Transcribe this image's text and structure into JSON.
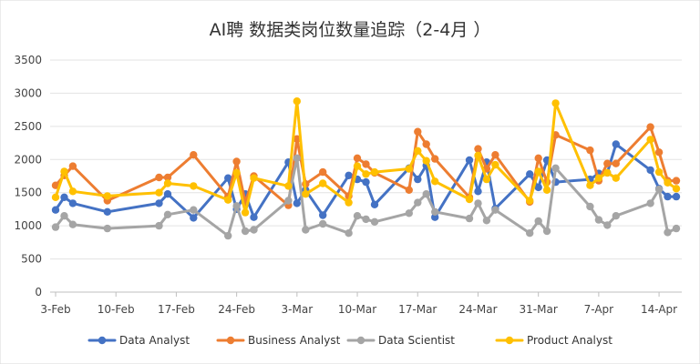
{
  "chart_data": {
    "type": "line",
    "title": "AI聘 数据类岗位数量追踪（2-4月 ）",
    "xlabel": "",
    "ylabel": "",
    "ylim": [
      0,
      3500
    ],
    "yticks": [
      0,
      500,
      1000,
      1500,
      2000,
      2500,
      3000,
      3500
    ],
    "xlim": [
      0,
      72
    ],
    "x_ticks": [
      {
        "label": "3-Feb",
        "x": 0
      },
      {
        "label": "10-Feb",
        "x": 7
      },
      {
        "label": "17-Feb",
        "x": 14
      },
      {
        "label": "24-Feb",
        "x": 21
      },
      {
        "label": "3-Mar",
        "x": 28
      },
      {
        "label": "10-Mar",
        "x": 35
      },
      {
        "label": "17-Mar",
        "x": 42
      },
      {
        "label": "24-Mar",
        "x": 49
      },
      {
        "label": "31-Mar",
        "x": 56
      },
      {
        "label": "7-Apr",
        "x": 63
      },
      {
        "label": "14-Apr",
        "x": 70
      }
    ],
    "x": [
      0,
      1,
      2,
      6,
      12,
      13,
      16,
      20,
      21,
      22,
      23,
      27,
      28,
      29,
      31,
      34,
      35,
      36,
      37,
      41,
      42,
      43,
      44,
      48,
      49,
      50,
      51,
      55,
      56,
      57,
      58,
      62,
      63,
      64,
      65,
      69,
      70,
      71,
      72
    ],
    "grid": true,
    "legend": "bottom",
    "series": [
      {
        "name": "Data Analyst",
        "color": "#4472C4",
        "values": [
          1240,
          1430,
          1340,
          1210,
          1340,
          1480,
          1120,
          1720,
          1250,
          1480,
          1130,
          1960,
          1340,
          1540,
          1160,
          1760,
          1700,
          1660,
          1320,
          1870,
          1700,
          1910,
          1130,
          1990,
          1520,
          1960,
          1260,
          1780,
          1580,
          1990,
          1660,
          1700,
          1790,
          1800,
          2230,
          1840,
          1560,
          1440,
          1440
        ]
      },
      {
        "name": "Business Analyst",
        "color": "#ED7D31",
        "values": [
          1610,
          1760,
          1900,
          1380,
          1730,
          1730,
          2070,
          1440,
          1970,
          1350,
          1750,
          1310,
          2310,
          1630,
          1810,
          1450,
          2020,
          1930,
          1800,
          1540,
          2420,
          2230,
          2010,
          1430,
          2160,
          1860,
          2070,
          1360,
          2020,
          1660,
          2370,
          2140,
          1680,
          1940,
          1940,
          2490,
          2110,
          1680,
          1680
        ]
      },
      {
        "name": "Data Scientist",
        "color": "#A5A5A5",
        "values": [
          980,
          1150,
          1020,
          960,
          1000,
          1170,
          1240,
          850,
          1300,
          920,
          940,
          1380,
          2020,
          940,
          1030,
          890,
          1150,
          1100,
          1060,
          1190,
          1350,
          1480,
          1210,
          1110,
          1340,
          1080,
          1240,
          890,
          1070,
          920,
          1870,
          1290,
          1090,
          1010,
          1150,
          1340,
          1550,
          900,
          960
        ]
      },
      {
        "name": "Product Analyst",
        "color": "#FFC000",
        "values": [
          1430,
          1820,
          1520,
          1450,
          1500,
          1640,
          1600,
          1390,
          1800,
          1200,
          1720,
          1600,
          2880,
          1480,
          1640,
          1350,
          1900,
          1780,
          1810,
          1860,
          2130,
          1980,
          1670,
          1400,
          2060,
          1700,
          1920,
          1380,
          1820,
          1540,
          2850,
          1610,
          1720,
          1800,
          1720,
          2300,
          1810,
          1650,
          1560
        ]
      }
    ]
  }
}
